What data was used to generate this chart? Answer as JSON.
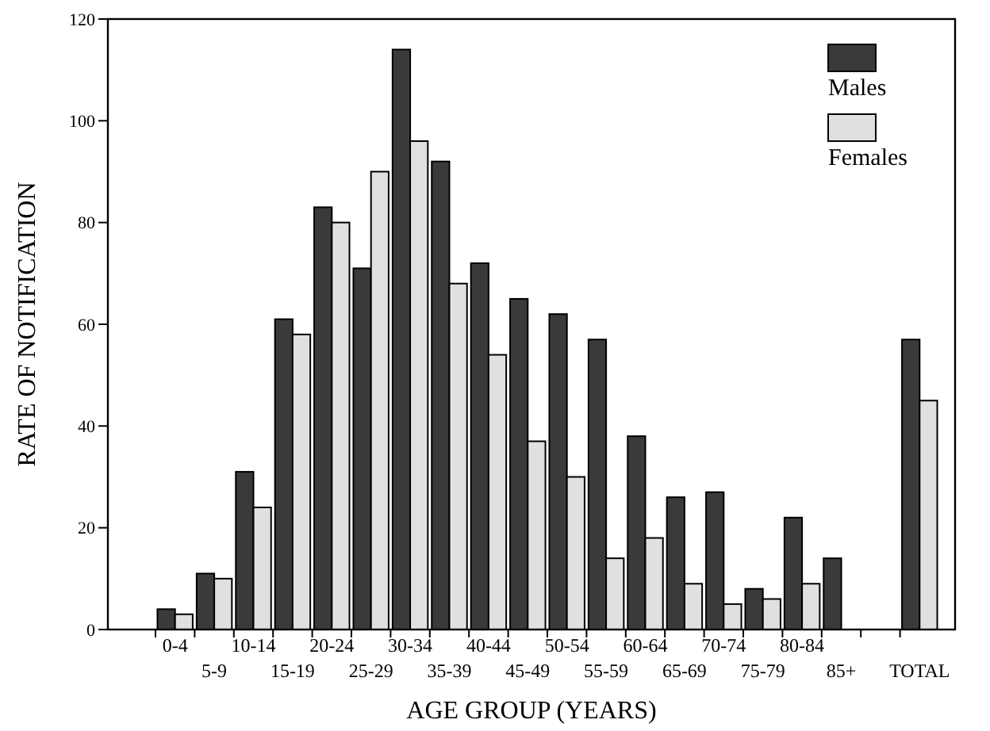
{
  "chart_data": {
    "type": "bar",
    "xlabel": "AGE GROUP (YEARS)",
    "ylabel": "RATE OF NOTIFICATION",
    "categories": [
      "0-4",
      "5-9",
      "10-14",
      "15-19",
      "20-24",
      "25-29",
      "30-34",
      "35-39",
      "40-44",
      "45-49",
      "50-54",
      "55-59",
      "60-64",
      "65-69",
      "70-74",
      "75-79",
      "80-84",
      "85+",
      null,
      "TOTAL"
    ],
    "series": [
      {
        "name": "Males",
        "color": "#3a3a3a",
        "values": [
          4,
          11,
          31,
          61,
          83,
          71,
          114,
          92,
          72,
          65,
          62,
          57,
          38,
          26,
          27,
          8,
          22,
          14,
          null,
          57
        ]
      },
      {
        "name": "Females",
        "color": "#e0e0e0",
        "values": [
          3,
          10,
          24,
          58,
          80,
          90,
          96,
          68,
          54,
          37,
          30,
          14,
          18,
          9,
          5,
          6,
          9,
          null,
          null,
          45
        ]
      }
    ],
    "ylim": [
      0,
      120
    ],
    "yticks": [
      0,
      20,
      40,
      60,
      80,
      100,
      120
    ],
    "grid": false,
    "legend": "top right"
  }
}
